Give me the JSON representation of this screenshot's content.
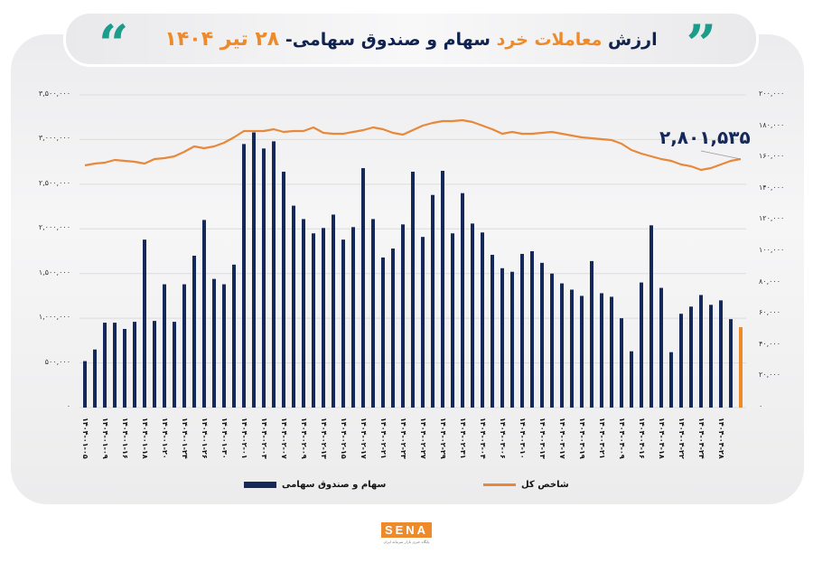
{
  "header": {
    "title_part1": "ارزش",
    "title_highlight": "معاملات خرد",
    "title_part2": "سهام و صندوق سهامی-",
    "title_date": "۲۸ تیر ۱۴۰۴",
    "quote_left_icon": "quote-open-icon",
    "quote_right_icon": "quote-close-icon"
  },
  "colors": {
    "bar": "#14285a",
    "bar_last": "#ef8a2a",
    "line": "#e8883a",
    "accent_teal": "#1b9d8c",
    "accent_orange": "#ef8a2a",
    "title_navy": "#10224f"
  },
  "annotation": {
    "text": "۲,۸۰۱,۵۳۵"
  },
  "legend": {
    "bars_label": "سهام و صندوق سهامی",
    "line_label": "شاخص کل"
  },
  "footer": {
    "logo_text": "SENA",
    "logo_subtitle": "پایگاه خبری بازار سرمایه ایران"
  },
  "chart_data": {
    "type": "bar+line",
    "title": "ارزش معاملات خرد سهام و صندوق سهامی- ۲۸ تیر ۱۴۰۴",
    "left_axis": {
      "ticks": [
        "۰",
        "۵۰۰,۰۰۰",
        "۱,۰۰۰,۰۰۰",
        "۱,۵۰۰,۰۰۰",
        "۲,۰۰۰,۰۰۰",
        "۲,۵۰۰,۰۰۰",
        "۳,۰۰۰,۰۰۰",
        "۳,۵۰۰,۰۰۰"
      ],
      "range": [
        0,
        3500000
      ]
    },
    "right_axis": {
      "ticks": [
        "۰",
        "۲۰,۰۰۰",
        "۴۰,۰۰۰",
        "۶۰,۰۰۰",
        "۸۰,۰۰۰",
        "۱۰۰,۰۰۰",
        "۱۲۰,۰۰۰",
        "۱۴۰,۰۰۰",
        "۱۶۰,۰۰۰",
        "۱۸۰,۰۰۰",
        "۲۰۰,۰۰۰"
      ],
      "range": [
        0,
        200000
      ]
    },
    "x_labels": [
      "۱۴۰۴-۰۱-۰۵",
      "۱۴۰۴-۰۱-۰۹",
      "۱۴۰۴-۰۱-۱۶",
      "۱۴۰۴-۰۱-۱۸",
      "۱۴۰۴-۰۱-۲۰",
      "۱۴۰۴-۰۱-۲۴",
      "۱۴۰۴-۰۱-۲۶",
      "۱۴۰۴-۰۱-۳۰",
      "۱۴۰۴-۰۲-۰۱",
      "۱۴۰۴-۰۲-۰۳",
      "۱۴۰۴-۰۲-۰۷",
      "۱۴۰۴-۰۲-۰۹",
      "۱۴۰۴-۰۲-۱۳",
      "۱۴۰۴-۰۲-۱۵",
      "۱۴۰۴-۰۲-۱۷",
      "۱۴۰۴-۰۲-۲۱",
      "۱۴۰۴-۰۲-۲۳",
      "۱۴۰۴-۰۲-۲۷",
      "۱۴۰۴-۰۲-۲۹",
      "۱۴۰۴-۰۲-۳۱",
      "۱۴۰۴-۰۳-۰۴",
      "۱۴۰۴-۰۳-۰۶",
      "۱۴۰۴-۰۳-۱۰",
      "۱۴۰۴-۰۳-۱۳",
      "۱۴۰۴-۰۳-۱۷",
      "۱۴۰۴-۰۳-۱۹",
      "۱۴۰۴-۰۳-۲۱",
      "۱۴۰۴-۰۴-۰۹",
      "۱۴۰۴-۰۴-۱۶",
      "۱۴۰۴-۰۴-۱۸",
      "۱۴۰۴-۰۴-۲۲",
      "۱۴۰۴-۰۴-۲۴",
      "۱۴۰۴-۰۴-۲۸"
    ],
    "series": [
      {
        "name": "سهام و صندوق سهامی",
        "type": "bar",
        "axis": "left",
        "values": [
          520000,
          650000,
          950000,
          950000,
          880000,
          960000,
          1880000,
          970000,
          1380000,
          960000,
          1380000,
          1700000,
          2100000,
          1440000,
          1380000,
          1600000,
          2950000,
          3080000,
          2900000,
          2980000,
          2640000,
          2260000,
          2110000,
          1950000,
          2010000,
          2160000,
          1880000,
          2020000,
          2680000,
          2110000,
          1680000,
          1780000,
          2050000,
          2640000,
          1910000,
          2380000,
          2650000,
          1950000,
          2400000,
          2060000,
          1960000,
          1710000,
          1560000,
          1520000,
          1720000,
          1750000,
          1620000,
          1500000,
          1390000,
          1320000,
          1250000,
          1640000,
          1280000,
          1240000,
          1000000,
          630000,
          1400000,
          2040000,
          1340000,
          620000,
          1050000,
          1130000,
          1260000,
          1150000,
          1200000,
          990000,
          900000
        ]
      },
      {
        "name": "شاخص کل",
        "type": "line",
        "axis": "right",
        "last_value_label": "۲,۸۰۱,۵۳۵"
      }
    ],
    "legend_position": "bottom",
    "grid": true
  }
}
